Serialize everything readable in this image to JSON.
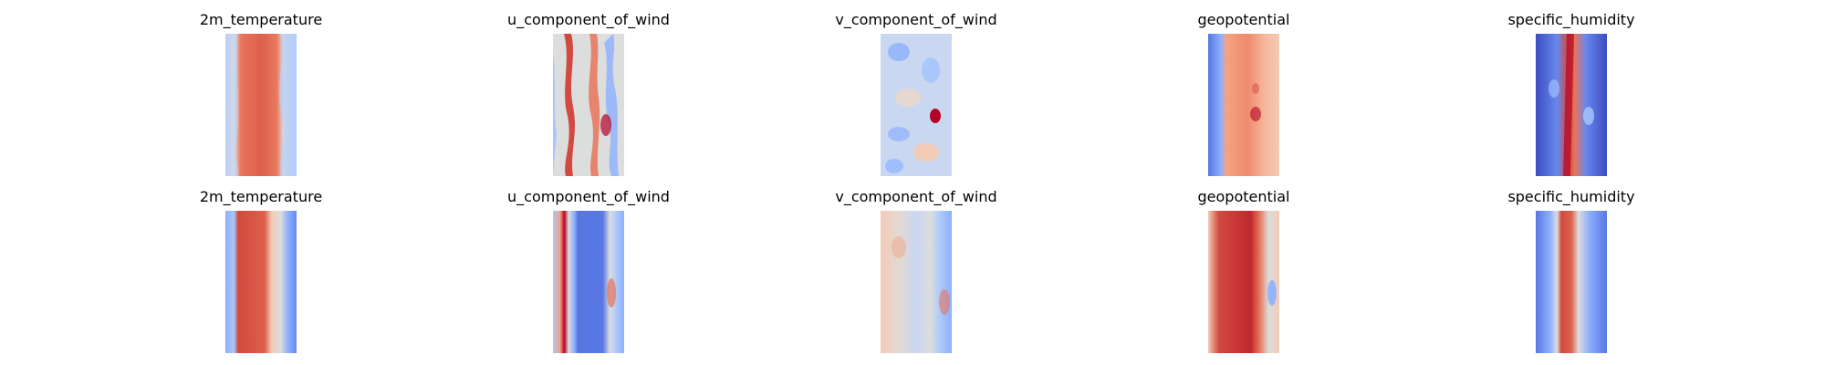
{
  "colormap": "coolwarm",
  "colors": {
    "cold": "#3b4cc0",
    "neutral": "#dddddd",
    "warm": "#b40426"
  },
  "rows": [
    {
      "panels": [
        {
          "title": "2m_temperature"
        },
        {
          "title": "u_component_of_wind"
        },
        {
          "title": "v_component_of_wind"
        },
        {
          "title": "geopotential"
        },
        {
          "title": "specific_humidity"
        }
      ]
    },
    {
      "panels": [
        {
          "title": "2m_temperature"
        },
        {
          "title": "u_component_of_wind"
        },
        {
          "title": "v_component_of_wind"
        },
        {
          "title": "geopotential"
        },
        {
          "title": "specific_humidity"
        }
      ]
    }
  ]
}
